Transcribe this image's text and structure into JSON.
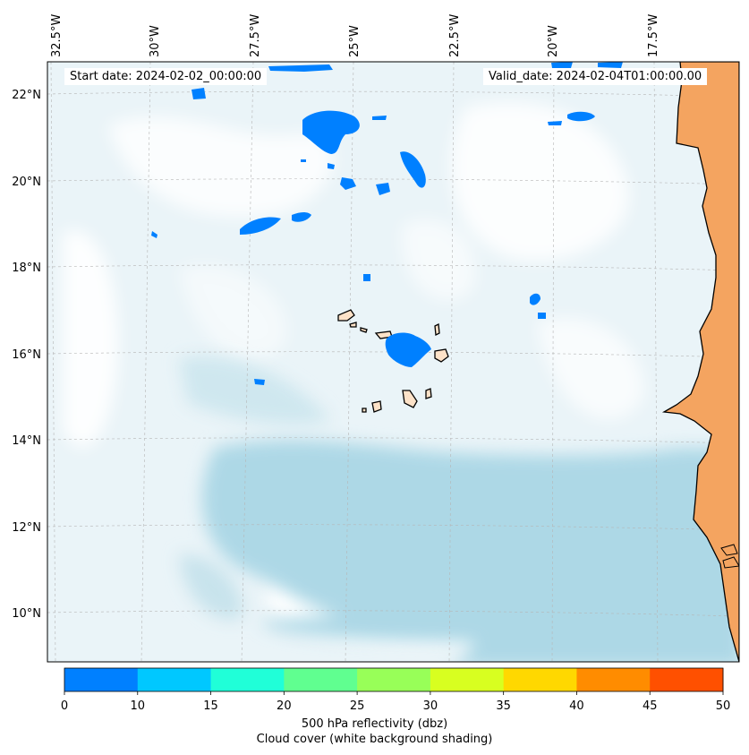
{
  "dates": {
    "start": "Start date: 2024-02-02_00:00:00",
    "valid": "Valid_date: 2024-02-04T01:00:00.00"
  },
  "lon_labels": [
    "32.5°W",
    "30°W",
    "27.5°W",
    "25°W",
    "22.5°W",
    "20°W",
    "17.5°W"
  ],
  "lat_labels": [
    "22°N",
    "20°N",
    "18°N",
    "16°N",
    "14°N",
    "12°N",
    "10°N"
  ],
  "colorbar": {
    "ticks": [
      "0",
      "10",
      "15",
      "20",
      "25",
      "30",
      "35",
      "40",
      "45",
      "50"
    ],
    "colors": [
      "#0080ff",
      "#00c8ff",
      "#20ffd8",
      "#60ff90",
      "#98ff58",
      "#d8ff20",
      "#ffd800",
      "#ff8c00",
      "#ff5000"
    ],
    "label": "500 hPa reflectivity (dbz)",
    "sublabel": "Cloud cover (white background shading)"
  },
  "colors": {
    "land": "#f4a460",
    "island": "#fde2c8",
    "cloud_light": "#e9f4f8",
    "cloud_dense": "#add8e6",
    "echo": "#0080ff"
  }
}
